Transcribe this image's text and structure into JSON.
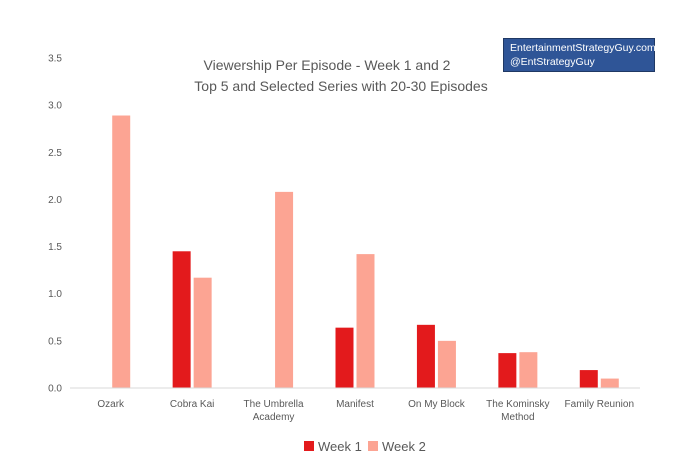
{
  "colors": {
    "week1": "#e31a1c",
    "week2": "#fca493",
    "axis": "#d9d9d9",
    "text": "#595959",
    "badge_bg": "#2f5597"
  },
  "badge": {
    "line1": "EntertainmentStrategyGuy.com",
    "line2": "@EntStrategyGuy"
  },
  "chart_data": {
    "type": "bar",
    "title": "Viewership Per Episode - Week 1 and 2",
    "subtitle": "Top 5 and Selected Series with 20-30 Episodes",
    "xlabel": "",
    "ylabel": "",
    "ylim": [
      0,
      3.5
    ],
    "yticks": [
      "0.0",
      "0.5",
      "1.0",
      "1.5",
      "2.0",
      "2.5",
      "3.0",
      "3.5"
    ],
    "grid": false,
    "legend_position": "bottom",
    "categories": [
      [
        "Ozark"
      ],
      [
        "Cobra Kai"
      ],
      [
        "The Umbrella",
        "Academy"
      ],
      [
        "Manifest"
      ],
      [
        "On My Block"
      ],
      [
        "The Kominsky",
        "Method"
      ],
      [
        "Family Reunion"
      ]
    ],
    "series": [
      {
        "name": "Week 1",
        "values": [
          0,
          1.45,
          0,
          0.64,
          0.67,
          0.37,
          0.19
        ]
      },
      {
        "name": "Week 2",
        "values": [
          2.89,
          1.17,
          2.08,
          1.42,
          0.5,
          0.38,
          0.1
        ]
      }
    ]
  }
}
